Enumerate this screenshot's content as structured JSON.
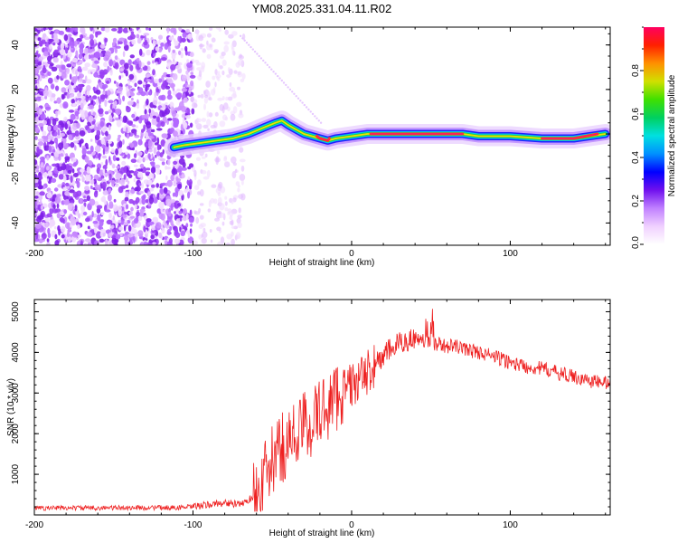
{
  "title": "YM08.2025.331.04.11.R02",
  "chart_data": [
    {
      "type": "heatmap",
      "title": "YM08.2025.331.04.11.R02",
      "xlabel": "Height of straight line (km)",
      "ylabel": "Frequency (Hz)",
      "xlim": [
        -200,
        163
      ],
      "ylim": [
        -50,
        48
      ],
      "x_ticks": [
        -200,
        -100,
        0,
        100
      ],
      "y_ticks": [
        -40,
        -20,
        0,
        20,
        40
      ],
      "colorbar": {
        "label": "Normalized spectral amplitude",
        "range": [
          0,
          1
        ],
        "ticks": [
          "0.0",
          "0.2",
          "0.4",
          "0.6",
          "0.8"
        ],
        "colors": [
          "#ffffff",
          "#f0d0ff",
          "#c080ff",
          "#7010ee",
          "#0000ff",
          "#0090ff",
          "#00e0e0",
          "#00d060",
          "#40e000",
          "#d0e000",
          "#ff9000",
          "#ff2000",
          "#ff0060"
        ]
      },
      "ridge": {
        "x": [
          -112,
          -105,
          -95,
          -85,
          -75,
          -65,
          -55,
          -48,
          -44,
          -40,
          -35,
          -30,
          -25,
          -20,
          -15,
          -10,
          0,
          10,
          20,
          40,
          60,
          70,
          80,
          100,
          120,
          140,
          160
        ],
        "freq": [
          -6,
          -5,
          -4,
          -3,
          -2,
          0,
          3,
          5,
          6,
          4,
          2,
          0,
          -1,
          -2,
          -3,
          -2,
          -1,
          0,
          0,
          0,
          0,
          0,
          -1,
          -1,
          -2,
          -2,
          0
        ]
      },
      "noise_region": {
        "x_from": -200,
        "x_to": -68,
        "dense_to": -100
      }
    },
    {
      "type": "line",
      "title": "",
      "xlabel": "Height of straight line (km)",
      "ylabel": "SNR (10 * v/v)",
      "xlim": [
        -200,
        163
      ],
      "ylim": [
        0,
        5300
      ],
      "x_ticks": [
        -200,
        -100,
        0,
        100
      ],
      "y_ticks": [
        1000,
        2000,
        3000,
        4000,
        5000
      ],
      "series": [
        {
          "name": "SNR",
          "color": "#ee2020",
          "x": [
            -200,
            -150,
            -110,
            -100,
            -90,
            -80,
            -70,
            -60,
            -55,
            -50,
            -45,
            -40,
            -35,
            -30,
            -25,
            -20,
            -15,
            -10,
            -5,
            0,
            5,
            10,
            15,
            20,
            25,
            30,
            35,
            40,
            45,
            50,
            55,
            60,
            65,
            70,
            80,
            90,
            100,
            110,
            120,
            130,
            140,
            150,
            160,
            163
          ],
          "y": [
            170,
            175,
            180,
            200,
            250,
            300,
            250,
            500,
            900,
            1300,
            1600,
            1800,
            2000,
            2200,
            2300,
            2500,
            2700,
            2900,
            3100,
            3200,
            3300,
            3500,
            3700,
            3900,
            4100,
            4200,
            4300,
            4350,
            4300,
            4250,
            4200,
            4150,
            4150,
            4100,
            4000,
            3900,
            3750,
            3650,
            3600,
            3500,
            3400,
            3300,
            3250,
            3300
          ]
        }
      ]
    }
  ]
}
